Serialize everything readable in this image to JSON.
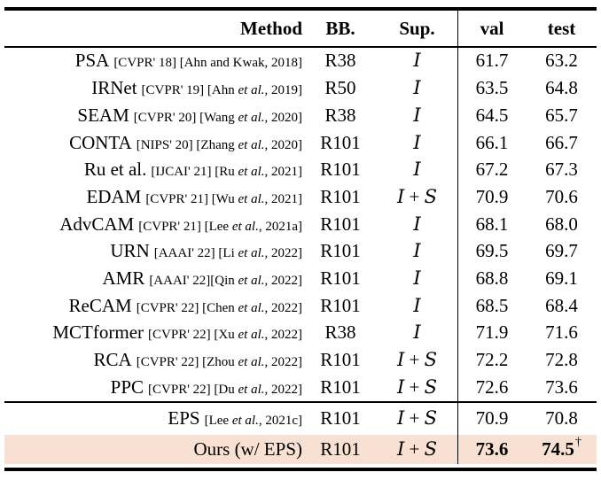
{
  "colors": {
    "highlight": "#f8e0d3",
    "rule": "#000000",
    "text": "#000000"
  },
  "table": {
    "headers": {
      "method": "Method",
      "bb": "BB.",
      "sup": "Sup.",
      "val": "val",
      "test": "test"
    },
    "rows": [
      {
        "method": "PSA",
        "cite_parts": [
          {
            "t": "[CVPR' 18] [Ahn and Kwak, 2018]",
            "i": false
          }
        ],
        "bb": "R38",
        "sup_parts": [
          {
            "t": "I",
            "cal": true
          }
        ],
        "val": "61.7",
        "test": "63.2"
      },
      {
        "method": "IRNet",
        "cite_parts": [
          {
            "t": "[CVPR' 19] [Ahn ",
            "i": false
          },
          {
            "t": "et al.",
            "i": true
          },
          {
            "t": ", 2019]",
            "i": false
          }
        ],
        "bb": "R50",
        "sup_parts": [
          {
            "t": "I",
            "cal": true
          }
        ],
        "val": "63.5",
        "test": "64.8"
      },
      {
        "method": "SEAM",
        "cite_parts": [
          {
            "t": "[CVPR' 20] [Wang ",
            "i": false
          },
          {
            "t": "et al.",
            "i": true
          },
          {
            "t": ", 2020]",
            "i": false
          }
        ],
        "bb": "R38",
        "sup_parts": [
          {
            "t": "I",
            "cal": true
          }
        ],
        "val": "64.5",
        "test": "65.7"
      },
      {
        "method": "CONTA",
        "cite_parts": [
          {
            "t": "[NIPS' 20] [Zhang ",
            "i": false
          },
          {
            "t": "et al.",
            "i": true
          },
          {
            "t": ", 2020]",
            "i": false
          }
        ],
        "bb": "R101",
        "sup_parts": [
          {
            "t": "I",
            "cal": true
          }
        ],
        "val": "66.1",
        "test": "66.7"
      },
      {
        "method": "Ru et al.",
        "cite_parts": [
          {
            "t": "[IJCAI' 21] [Ru ",
            "i": false
          },
          {
            "t": "et al.",
            "i": true
          },
          {
            "t": ", 2021]",
            "i": false
          }
        ],
        "bb": "R101",
        "sup_parts": [
          {
            "t": "I",
            "cal": true
          }
        ],
        "val": "67.2",
        "test": "67.3"
      },
      {
        "method": "EDAM",
        "cite_parts": [
          {
            "t": "[CVPR' 21] [Wu ",
            "i": false
          },
          {
            "t": "et al.",
            "i": true
          },
          {
            "t": ", 2021]",
            "i": false
          }
        ],
        "bb": "R101",
        "sup_parts": [
          {
            "t": "I",
            "cal": true
          },
          {
            "t": " + ",
            "cal": false
          },
          {
            "t": "S",
            "cal": true
          }
        ],
        "val": "70.9",
        "test": "70.6"
      },
      {
        "method": "AdvCAM",
        "cite_parts": [
          {
            "t": "[CVPR' 21] [Lee ",
            "i": false
          },
          {
            "t": "et al.",
            "i": true
          },
          {
            "t": ", 2021a]",
            "i": false
          }
        ],
        "bb": "R101",
        "sup_parts": [
          {
            "t": "I",
            "cal": true
          }
        ],
        "val": "68.1",
        "test": "68.0"
      },
      {
        "method": "URN",
        "cite_parts": [
          {
            "t": "[AAAI' 22] [Li ",
            "i": false
          },
          {
            "t": "et al.",
            "i": true
          },
          {
            "t": ", 2022]",
            "i": false
          }
        ],
        "bb": "R101",
        "sup_parts": [
          {
            "t": "I",
            "cal": true
          }
        ],
        "val": "69.5",
        "test": "69.7"
      },
      {
        "method": "AMR",
        "cite_parts": [
          {
            "t": "[AAAI' 22][Qin ",
            "i": false
          },
          {
            "t": "et al.",
            "i": true
          },
          {
            "t": ", 2022]",
            "i": false
          }
        ],
        "bb": "R101",
        "sup_parts": [
          {
            "t": "I",
            "cal": true
          }
        ],
        "val": "68.8",
        "test": "69.1"
      },
      {
        "method": "ReCAM",
        "cite_parts": [
          {
            "t": "[CVPR' 22] [Chen ",
            "i": false
          },
          {
            "t": "et al.",
            "i": true
          },
          {
            "t": ", 2022]",
            "i": false
          }
        ],
        "bb": "R101",
        "sup_parts": [
          {
            "t": "I",
            "cal": true
          }
        ],
        "val": "68.5",
        "test": "68.4"
      },
      {
        "method": "MCTformer",
        "cite_parts": [
          {
            "t": "[CVPR' 22] [Xu ",
            "i": false
          },
          {
            "t": "et al.",
            "i": true
          },
          {
            "t": ", 2022]",
            "i": false
          }
        ],
        "bb": "R38",
        "sup_parts": [
          {
            "t": "I",
            "cal": true
          }
        ],
        "val": "71.9",
        "test": "71.6"
      },
      {
        "method": "RCA",
        "cite_parts": [
          {
            "t": "[CVPR' 22] [Zhou ",
            "i": false
          },
          {
            "t": "et al.",
            "i": true
          },
          {
            "t": ", 2022]",
            "i": false
          }
        ],
        "bb": "R101",
        "sup_parts": [
          {
            "t": "I",
            "cal": true
          },
          {
            "t": " + ",
            "cal": false
          },
          {
            "t": "S",
            "cal": true
          }
        ],
        "val": "72.2",
        "test": "72.8"
      },
      {
        "method": "PPC",
        "cite_parts": [
          {
            "t": "[CVPR' 22] [Du ",
            "i": false
          },
          {
            "t": "et al.",
            "i": true
          },
          {
            "t": ", 2022]",
            "i": false
          }
        ],
        "bb": "R101",
        "sup_parts": [
          {
            "t": "I",
            "cal": true
          },
          {
            "t": " + ",
            "cal": false
          },
          {
            "t": "S",
            "cal": true
          }
        ],
        "val": "72.6",
        "test": "73.6"
      }
    ],
    "bottom_rows": [
      {
        "method": "EPS",
        "cite_parts": [
          {
            "t": "[Lee ",
            "i": false
          },
          {
            "t": "et al.",
            "i": true
          },
          {
            "t": ", 2021c]",
            "i": false
          }
        ],
        "bb": "R101",
        "sup_parts": [
          {
            "t": "I",
            "cal": true
          },
          {
            "t": " + ",
            "cal": false
          },
          {
            "t": "S",
            "cal": true
          }
        ],
        "val": "70.9",
        "test": "70.8"
      },
      {
        "method": "Ours (w/ EPS)",
        "cite_parts": [],
        "bb": "R101",
        "sup_parts": [
          {
            "t": "I",
            "cal": true
          },
          {
            "t": " + ",
            "cal": false
          },
          {
            "t": "S",
            "cal": true
          }
        ],
        "val": "73.6",
        "test": "74.5",
        "dagger": "†",
        "bold": true,
        "highlight": true
      }
    ]
  }
}
